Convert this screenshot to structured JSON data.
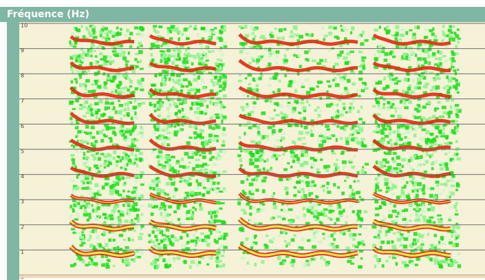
{
  "window": {
    "title": "Fréquence (Hz)"
  },
  "axis": {
    "ylim": [
      0,
      10
    ],
    "yticks": [
      0,
      1,
      2,
      3,
      4,
      5,
      6,
      7,
      8,
      9,
      10
    ]
  }
}
